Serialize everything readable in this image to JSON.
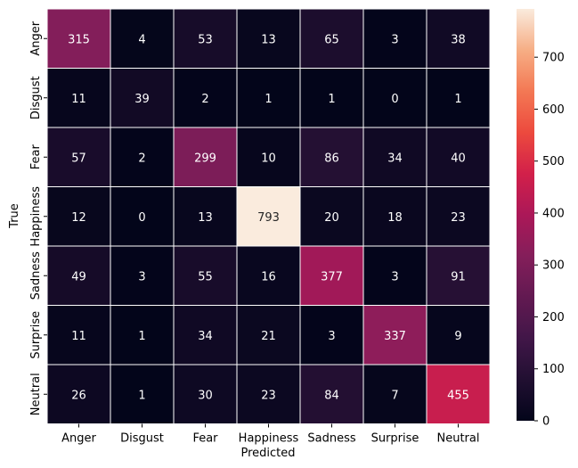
{
  "chart_data": {
    "type": "heatmap",
    "xlabel": "Predicted",
    "ylabel": "True",
    "x_categories": [
      "Anger",
      "Disgust",
      "Fear",
      "Happiness",
      "Sadness",
      "Surprise",
      "Neutral"
    ],
    "y_categories": [
      "Anger",
      "Disgust",
      "Fear",
      "Happiness",
      "Sadness",
      "Surprise",
      "Neutral"
    ],
    "values": [
      [
        315,
        4,
        53,
        13,
        65,
        3,
        38
      ],
      [
        11,
        39,
        2,
        1,
        1,
        0,
        1
      ],
      [
        57,
        2,
        299,
        10,
        86,
        34,
        40
      ],
      [
        12,
        0,
        13,
        793,
        20,
        18,
        23
      ],
      [
        49,
        3,
        55,
        16,
        377,
        3,
        91
      ],
      [
        11,
        1,
        34,
        21,
        3,
        337,
        9
      ],
      [
        26,
        1,
        30,
        23,
        84,
        7,
        455
      ]
    ],
    "colormap": "rocket",
    "vmin": 0,
    "vmax": 793,
    "colorbar_ticks": [
      0,
      100,
      200,
      300,
      400,
      500,
      600,
      700
    ],
    "annotations": true
  }
}
